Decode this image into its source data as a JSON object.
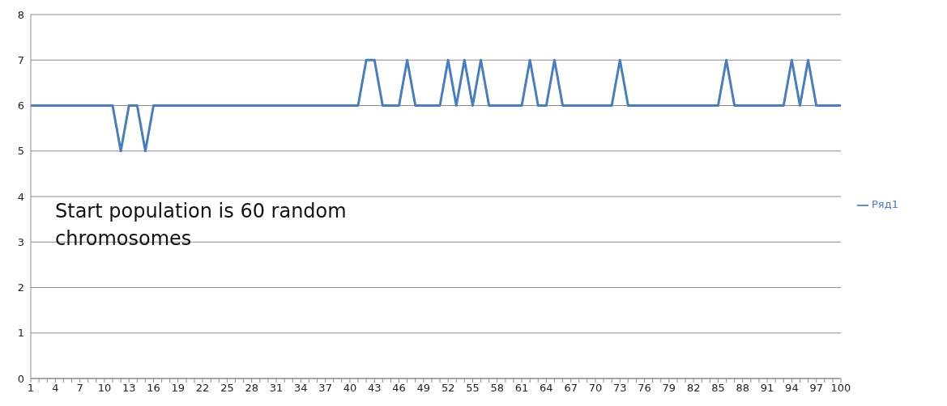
{
  "chart_data": {
    "type": "line",
    "categories": [
      "1",
      null,
      null,
      "4",
      null,
      null,
      "7",
      null,
      null,
      "10",
      null,
      null,
      "13",
      null,
      null,
      "16",
      null,
      null,
      "19",
      null,
      null,
      "22",
      null,
      null,
      "25",
      null,
      null,
      "28",
      null,
      null,
      "31",
      null,
      null,
      "34",
      null,
      null,
      "37",
      null,
      null,
      "40",
      null,
      null,
      "43",
      null,
      null,
      "46",
      null,
      null,
      "49",
      null,
      null,
      "52",
      null,
      null,
      "55",
      null,
      null,
      "58",
      null,
      null,
      "61",
      null,
      null,
      "64",
      null,
      null,
      "67",
      null,
      null,
      "70",
      null,
      null,
      "73",
      null,
      null,
      "76",
      null,
      null,
      "79",
      null,
      null,
      "82",
      null,
      null,
      "85",
      null,
      null,
      "88",
      null,
      null,
      "91",
      null,
      null,
      "94",
      null,
      null,
      "97",
      null,
      null,
      "100"
    ],
    "series": [
      {
        "name": "Ряд1",
        "color": "#4a7ebb",
        "values": [
          6,
          6,
          6,
          6,
          6,
          6,
          6,
          6,
          6,
          6,
          6,
          5,
          6,
          6,
          5,
          6,
          6,
          6,
          6,
          6,
          6,
          6,
          6,
          6,
          6,
          6,
          6,
          6,
          6,
          6,
          6,
          6,
          6,
          6,
          6,
          6,
          6,
          6,
          6,
          6,
          6,
          7,
          7,
          6,
          6,
          6,
          7,
          6,
          6,
          6,
          6,
          7,
          6,
          7,
          6,
          7,
          6,
          6,
          6,
          6,
          6,
          7,
          6,
          6,
          7,
          6,
          6,
          6,
          6,
          6,
          6,
          6,
          7,
          6,
          6,
          6,
          6,
          6,
          6,
          6,
          6,
          6,
          6,
          6,
          6,
          7,
          6,
          6,
          6,
          6,
          6,
          6,
          6,
          7,
          6,
          7,
          6,
          6,
          6,
          6
        ]
      }
    ],
    "ylim": [
      0,
      8
    ],
    "yticks": [
      0,
      1,
      2,
      3,
      4,
      5,
      6,
      7,
      8
    ],
    "grid": "y",
    "legend": "right",
    "marker": "none",
    "line_style": "solid",
    "annotations": [
      "Start population is 60 random chromosomes"
    ]
  }
}
